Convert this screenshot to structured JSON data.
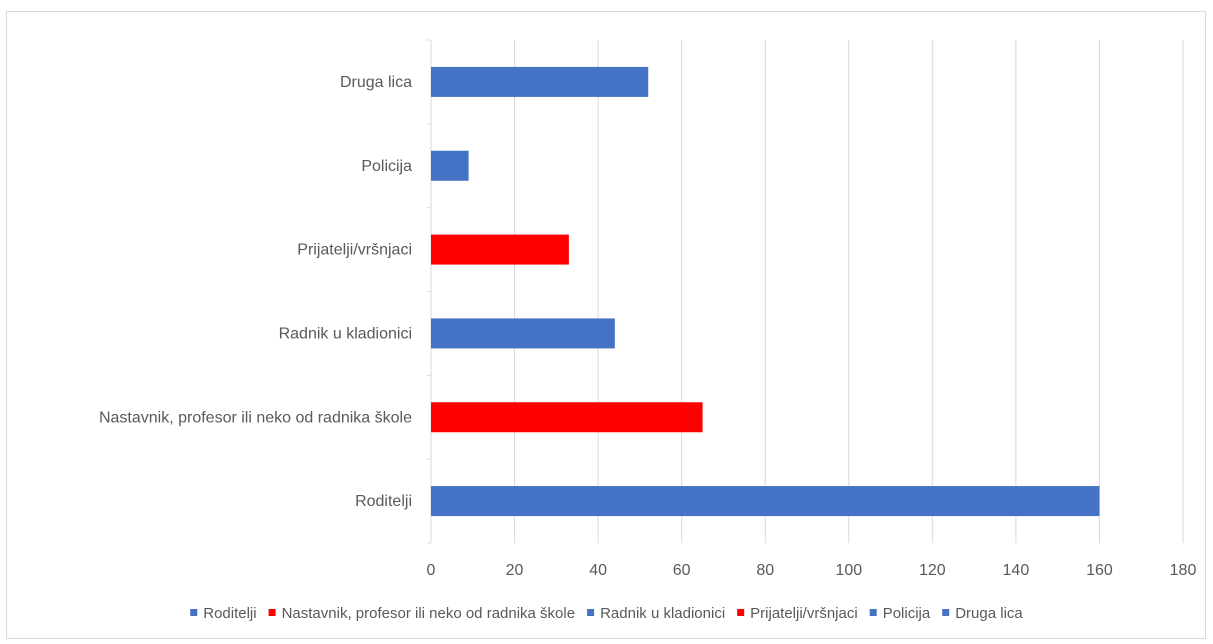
{
  "chart_data": {
    "type": "bar",
    "orientation": "horizontal",
    "categories": [
      "Roditelji",
      "Nastavnik, profesor ili neko od radnika škole",
      "Radnik u kladionici",
      "Prijatelji/vršnjaci",
      "Policija",
      "Druga lica"
    ],
    "values": [
      160,
      65,
      44,
      33,
      9,
      52
    ],
    "colors": [
      "#4472c4",
      "#ff0000",
      "#4472c4",
      "#ff0000",
      "#4472c4",
      "#4472c4"
    ],
    "xlim": [
      0,
      180
    ],
    "ticks": [
      "0",
      "20",
      "40",
      "60",
      "80",
      "100",
      "120",
      "140",
      "160",
      "180"
    ],
    "grid": "vertical",
    "legend_position": "bottom",
    "legend": [
      {
        "label": "Roditelji",
        "color": "#4472c4"
      },
      {
        "label": "Nastavnik, profesor ili neko od radnika škole",
        "color": "#ff0000"
      },
      {
        "label": "Radnik u kladionici",
        "color": "#4472c4"
      },
      {
        "label": "Prijatelji/vršnjaci",
        "color": "#ff0000"
      },
      {
        "label": "Policija",
        "color": "#4472c4"
      },
      {
        "label": "Druga lica",
        "color": "#4472c4"
      }
    ]
  }
}
